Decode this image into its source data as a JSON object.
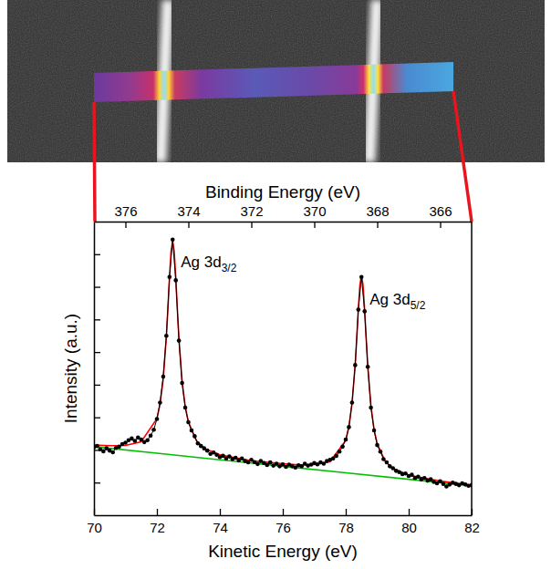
{
  "chart_data": {
    "type": "line",
    "x_label": "Kinetic Energy (eV)",
    "x2_label": "Binding Energy (eV)",
    "y_label": "Intensity (a.u.)",
    "xlim": [
      70,
      82
    ],
    "xticks": [
      70,
      72,
      74,
      76,
      78,
      80,
      82
    ],
    "x2lim": [
      377,
      365
    ],
    "x2ticks": [
      376,
      374,
      372,
      370,
      368,
      366
    ],
    "ylim": [
      0,
      9
    ],
    "yticks": [
      1,
      2,
      3,
      4,
      5,
      6,
      7,
      8
    ],
    "tick_labels": "x",
    "series": [
      {
        "type": "scatter",
        "color": "#000000",
        "marker": "circle",
        "line_style": "solid",
        "x": [
          70,
          70.1,
          70.2,
          70.3,
          70.4,
          70.5,
          70.6,
          70.7,
          70.8,
          70.9,
          71,
          71.1,
          71.2,
          71.3,
          71.4,
          71.5,
          71.6,
          71.7,
          71.8,
          71.9,
          72,
          72.1,
          72.2,
          72.3,
          72.4,
          72.5,
          72.6,
          72.7,
          72.8,
          72.9,
          73,
          73.1,
          73.2,
          73.3,
          73.4,
          73.5,
          73.6,
          73.7,
          73.8,
          73.9,
          74,
          74.1,
          74.2,
          74.3,
          74.4,
          74.5,
          74.6,
          74.7,
          74.8,
          74.9,
          75,
          75.1,
          75.2,
          75.3,
          75.4,
          75.5,
          75.6,
          75.7,
          75.8,
          75.9,
          76,
          76.1,
          76.2,
          76.3,
          76.4,
          76.5,
          76.6,
          76.7,
          76.8,
          76.9,
          77,
          77.1,
          77.2,
          77.3,
          77.4,
          77.5,
          77.6,
          77.7,
          77.8,
          77.9,
          78,
          78.1,
          78.2,
          78.3,
          78.4,
          78.5,
          78.6,
          78.7,
          78.8,
          78.9,
          79,
          79.1,
          79.2,
          79.3,
          79.4,
          79.5,
          79.6,
          79.7,
          79.8,
          79.9,
          80,
          80.1,
          80.2,
          80.3,
          80.4,
          80.5,
          80.6,
          80.7,
          80.8,
          80.9,
          81,
          81.1,
          81.2,
          81.3,
          81.4,
          81.5,
          81.6,
          81.7,
          81.8,
          81.9,
          82
        ],
        "values": [
          2.08,
          2.12,
          2.02,
          1.96,
          2.05,
          1.98,
          1.93,
          2.06,
          2.1,
          2.18,
          2.22,
          2.3,
          2.35,
          2.28,
          2.38,
          2.32,
          2.24,
          2.3,
          2.44,
          2.62,
          2.95,
          3.45,
          4.25,
          5.5,
          7.3,
          8.45,
          7.2,
          5.35,
          4.05,
          3.3,
          2.85,
          2.6,
          2.42,
          2.2,
          2.12,
          2.05,
          1.98,
          1.88,
          1.92,
          1.85,
          1.78,
          1.82,
          1.74,
          1.8,
          1.72,
          1.76,
          1.68,
          1.74,
          1.66,
          1.62,
          1.7,
          1.63,
          1.57,
          1.66,
          1.6,
          1.54,
          1.62,
          1.52,
          1.58,
          1.5,
          1.56,
          1.48,
          1.55,
          1.5,
          1.46,
          1.53,
          1.5,
          1.58,
          1.52,
          1.55,
          1.6,
          1.56,
          1.62,
          1.58,
          1.66,
          1.7,
          1.74,
          1.82,
          1.95,
          2.1,
          2.32,
          2.7,
          3.45,
          4.6,
          6.3,
          7.3,
          6.25,
          4.55,
          3.3,
          2.6,
          2.15,
          1.95,
          1.72,
          1.62,
          1.5,
          1.44,
          1.36,
          1.32,
          1.26,
          1.28,
          1.2,
          1.24,
          1.14,
          1.18,
          1.1,
          1.14,
          1.06,
          1.1,
          1.02,
          0.98,
          1.04,
          0.96,
          0.88,
          0.94,
          1.0,
          0.96,
          0.92,
          0.98,
          0.94,
          0.9,
          0.92
        ]
      },
      {
        "type": "line",
        "color": "#ff0000",
        "line_style": "solid",
        "x": [
          70,
          70.5,
          71,
          71.5,
          72,
          72.1,
          72.2,
          72.3,
          72.35,
          72.4,
          72.45,
          72.5,
          72.55,
          72.6,
          72.65,
          72.7,
          72.8,
          72.9,
          73,
          73.25,
          73.5,
          74,
          75,
          76,
          76.5,
          77,
          77.5,
          78,
          78.1,
          78.2,
          78.3,
          78.35,
          78.4,
          78.45,
          78.5,
          78.55,
          78.6,
          78.65,
          78.7,
          78.8,
          78.9,
          79,
          79.25,
          79.5,
          80,
          81,
          82
        ],
        "values": [
          2.15,
          2.13,
          2.14,
          2.25,
          2.96,
          3.41,
          4.17,
          5.46,
          6.34,
          7.29,
          8.09,
          8.4,
          8.08,
          7.27,
          6.31,
          5.42,
          4.11,
          3.33,
          2.86,
          2.29,
          2.05,
          1.85,
          1.67,
          1.58,
          1.54,
          1.55,
          1.64,
          2.29,
          2.71,
          3.42,
          4.61,
          5.43,
          6.32,
          7.06,
          7.35,
          7.05,
          6.3,
          5.41,
          4.57,
          3.36,
          2.63,
          2.19,
          1.66,
          1.43,
          1.23,
          1.05,
          0.92
        ]
      },
      {
        "type": "line",
        "color": "#00c000",
        "line_style": "solid",
        "x": [
          70,
          72,
          74,
          76,
          78,
          80,
          82
        ],
        "values": [
          2.1,
          1.9,
          1.7,
          1.5,
          1.3,
          1.1,
          0.9
        ]
      }
    ],
    "annotations": [
      {
        "text": "Ag 3d",
        "subscript": "3/2",
        "x": 72.5
      },
      {
        "text": "Ag 3d",
        "subscript": "5/2",
        "x": 78.5
      }
    ]
  }
}
